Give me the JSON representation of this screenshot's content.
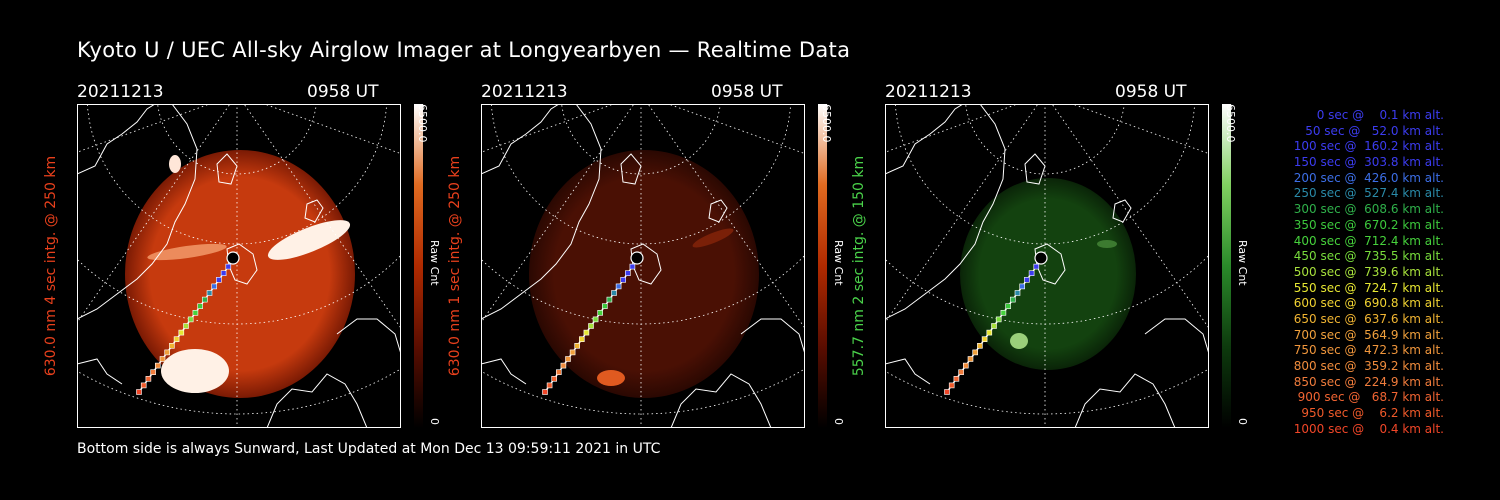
{
  "title": "Kyoto U / UEC All-sky Airglow Imager at Longyearbyen — Realtime Data",
  "footer": "Bottom side is always Sunward, Last Updated at Mon Dec 13 09:59:11 2021 in UTC",
  "panels": [
    {
      "date": "20211213",
      "time": "0958 UT",
      "ylabel": "630.0 nm 4 sec intg. @ 250 km",
      "label_color": "#e8401c",
      "colorbar": {
        "max": "6500.0",
        "min": "0",
        "label": "Raw Cnt",
        "colors": [
          "#000000",
          "#5a0d00",
          "#b02a00",
          "#e06a20",
          "#ffffff"
        ]
      },
      "disc_color": "#c63a0e",
      "disc_edge": "#7a1a04"
    },
    {
      "date": "20211213",
      "time": "0958 UT",
      "ylabel": "630.0 nm 1 sec intg. @ 250 km",
      "label_color": "#e8401c",
      "colorbar": {
        "max": "6500.0",
        "min": "0",
        "label": "Raw Cnt",
        "colors": [
          "#000000",
          "#5a0d00",
          "#b02a00",
          "#e06a20",
          "#ffffff"
        ]
      },
      "disc_color": "#4a1004",
      "disc_edge": "#2a0802"
    },
    {
      "date": "20211213",
      "time": "0958 UT",
      "ylabel": "557.7 nm 2 sec intg. @ 150 km",
      "label_color": "#4ad24a",
      "colorbar": {
        "max": "6500.0",
        "min": "0",
        "label": "Raw Cnt",
        "colors": [
          "#000000",
          "#0d3a0d",
          "#2a8a2a",
          "#80d060",
          "#ffffff"
        ]
      },
      "disc_color": "#13420f",
      "disc_edge": "#0a2408"
    }
  ],
  "legend": [
    {
      "text": "0 sec @    0.1 km alt.",
      "color": "#3c3cf0"
    },
    {
      "text": "50 sec @   52.0 km alt.",
      "color": "#3c3cf0"
    },
    {
      "text": "100 sec @  160.2 km alt.",
      "color": "#3c3cf0"
    },
    {
      "text": "150 sec @  303.8 km alt.",
      "color": "#3c3cf0"
    },
    {
      "text": "200 sec @  426.0 km alt.",
      "color": "#3c6ee6"
    },
    {
      "text": "250 sec @  527.4 km alt.",
      "color": "#2a8aa8"
    },
    {
      "text": "300 sec @  608.6 km alt.",
      "color": "#2fb04a"
    },
    {
      "text": "350 sec @  670.2 km alt.",
      "color": "#3cc83c"
    },
    {
      "text": "400 sec @  712.4 km alt.",
      "color": "#46d23c"
    },
    {
      "text": "450 sec @  735.5 km alt.",
      "color": "#78dc3c"
    },
    {
      "text": "500 sec @  739.6 km alt.",
      "color": "#a8e23c"
    },
    {
      "text": "550 sec @  724.7 km alt.",
      "color": "#e6e632"
    },
    {
      "text": "600 sec @  690.8 km alt.",
      "color": "#f0d232"
    },
    {
      "text": "650 sec @  637.6 km alt.",
      "color": "#f0b432"
    },
    {
      "text": "700 sec @  564.9 km alt.",
      "color": "#f0a03c"
    },
    {
      "text": "750 sec @  472.3 km alt.",
      "color": "#f0963c"
    },
    {
      "text": "800 sec @  359.2 km alt.",
      "color": "#f08c3c"
    },
    {
      "text": "850 sec @  224.9 km alt.",
      "color": "#f07c3c"
    },
    {
      "text": "900 sec @   68.7 km alt.",
      "color": "#f06432"
    },
    {
      "text": "950 sec @    6.2 km alt.",
      "color": "#f05a2a"
    },
    {
      "text": "1000 sec @    0.4 km alt.",
      "color": "#f04628"
    }
  ]
}
